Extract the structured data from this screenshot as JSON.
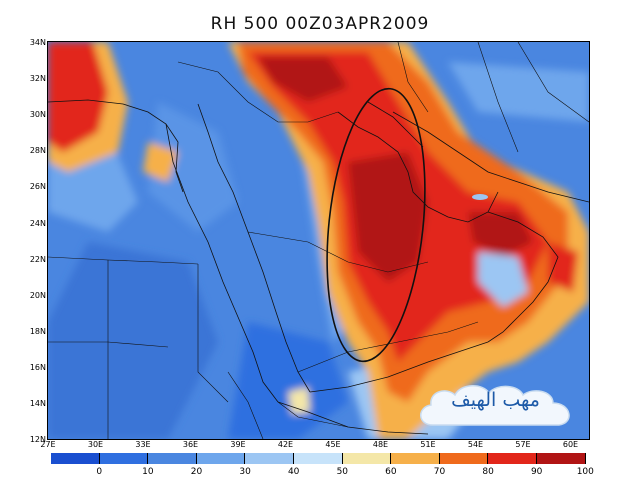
{
  "title": "RH 500  00Z03APR2009",
  "lat_labels": [
    "34N",
    "32N",
    "30N",
    "28N",
    "26N",
    "24N",
    "22N",
    "20N",
    "18N",
    "16N",
    "14N",
    "12N"
  ],
  "lon_labels": [
    "27E",
    "30E",
    "33E",
    "36E",
    "39E",
    "42E",
    "45E",
    "48E",
    "51E",
    "54E",
    "57E",
    "60E"
  ],
  "colorbar": {
    "labels": [
      "0",
      "10",
      "20",
      "30",
      "40",
      "50",
      "60",
      "70",
      "80",
      "90",
      "100"
    ],
    "colors": [
      "#1a4fd0",
      "#2f6fe0",
      "#4a86e0",
      "#6ea6ec",
      "#9cc6f3",
      "#c7e3fa",
      "#f4e7a8",
      "#f6b04a",
      "#ef6a1c",
      "#e2261a",
      "#b11414"
    ]
  },
  "watermark_text": "مهب الهيف",
  "colors": {
    "dry_blue": "#4a86e0",
    "moist_red": "#e2261a",
    "ellipse": "#111111"
  }
}
